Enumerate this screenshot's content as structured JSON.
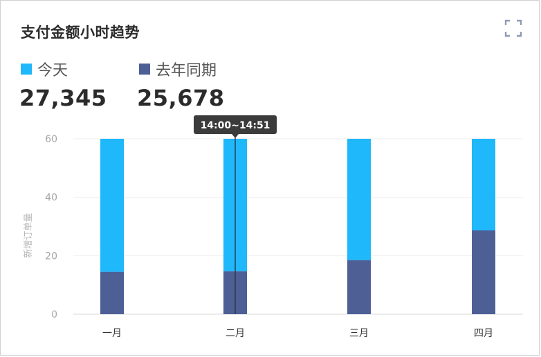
{
  "header": {
    "title": "支付金额小时趋势",
    "expand_icon": "fullscreen-icon"
  },
  "legend": [
    {
      "label": "今天",
      "value": "27,345",
      "color": "#1eb8fb"
    },
    {
      "label": "去年同期",
      "value": "25,678",
      "color": "#4e5f96"
    }
  ],
  "tooltip": {
    "label": "14:00~14:51",
    "category_index": 1
  },
  "chart_data": {
    "type": "bar",
    "stacked": true,
    "categories": [
      "一月",
      "二月",
      "三月",
      "四月"
    ],
    "series": [
      {
        "name": "去年同期",
        "values": [
          14.5,
          14.7,
          18.5,
          28.7
        ],
        "color": "#4e5f96"
      },
      {
        "name": "今天",
        "values": [
          45.5,
          45.3,
          41.5,
          31.3
        ],
        "color": "#1eb8fb"
      }
    ],
    "ylabel": "新增订单量",
    "ylim": [
      0,
      60
    ],
    "yticks": [
      0,
      20,
      40,
      60
    ],
    "grid": true
  }
}
